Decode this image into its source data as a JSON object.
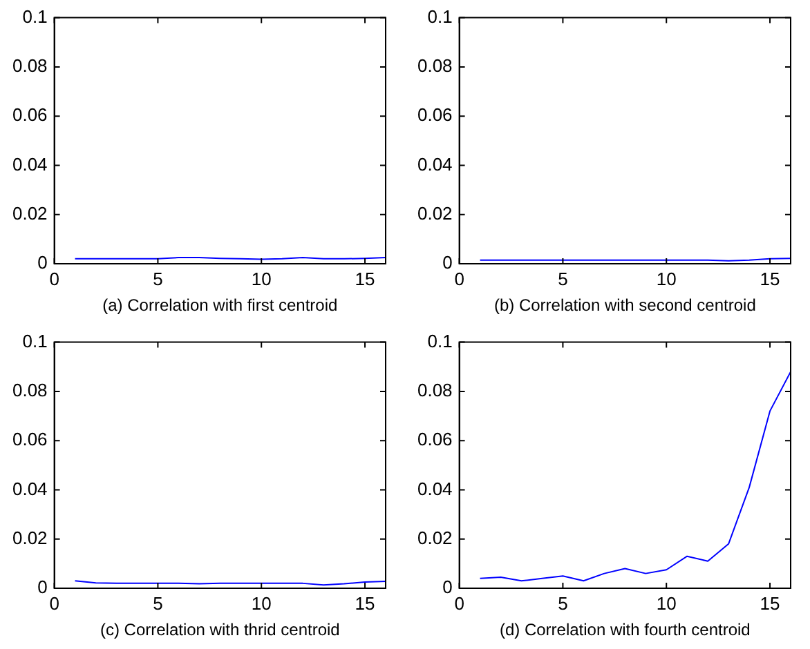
{
  "chart_data": [
    {
      "type": "line",
      "xlabel": "(a) Correlation with first centroid",
      "x": [
        1,
        2,
        3,
        4,
        5,
        6,
        7,
        8,
        9,
        10,
        11,
        12,
        13,
        14,
        15,
        16
      ],
      "series": [
        {
          "color": "#0000ff",
          "values": [
            0.002,
            0.002,
            0.002,
            0.002,
            0.002,
            0.0025,
            0.0025,
            0.0022,
            0.002,
            0.0018,
            0.002,
            0.0025,
            0.002,
            0.002,
            0.0022,
            0.0025
          ]
        }
      ],
      "xlim": [
        0,
        16
      ],
      "ylim": [
        0,
        0.1
      ],
      "xticks": [
        0,
        5,
        10,
        15
      ],
      "yticks": [
        0,
        0.02,
        0.04,
        0.06,
        0.08,
        0.1
      ],
      "grid": false,
      "legend": false,
      "marker": "none",
      "line_style": "solid"
    },
    {
      "type": "line",
      "xlabel": "(b) Correlation with second centroid",
      "x": [
        1,
        2,
        3,
        4,
        5,
        6,
        7,
        8,
        9,
        10,
        11,
        12,
        13,
        14,
        15,
        16
      ],
      "series": [
        {
          "color": "#0000ff",
          "values": [
            0.0015,
            0.0015,
            0.0015,
            0.0015,
            0.0015,
            0.0015,
            0.0015,
            0.0015,
            0.0015,
            0.0015,
            0.0015,
            0.0015,
            0.0012,
            0.0015,
            0.002,
            0.0022
          ]
        }
      ],
      "xlim": [
        0,
        16
      ],
      "ylim": [
        0,
        0.1
      ],
      "xticks": [
        0,
        5,
        10,
        15
      ],
      "yticks": [
        0,
        0.02,
        0.04,
        0.06,
        0.08,
        0.1
      ],
      "grid": false,
      "legend": false,
      "marker": "none",
      "line_style": "solid"
    },
    {
      "type": "line",
      "xlabel": "(c) Correlation with thrid centroid",
      "x": [
        1,
        2,
        3,
        4,
        5,
        6,
        7,
        8,
        9,
        10,
        11,
        12,
        13,
        14,
        15,
        16
      ],
      "series": [
        {
          "color": "#0000ff",
          "values": [
            0.003,
            0.0022,
            0.002,
            0.002,
            0.002,
            0.002,
            0.0018,
            0.002,
            0.002,
            0.002,
            0.002,
            0.002,
            0.0013,
            0.0018,
            0.0025,
            0.0028
          ]
        }
      ],
      "xlim": [
        0,
        16
      ],
      "ylim": [
        0,
        0.1
      ],
      "xticks": [
        0,
        5,
        10,
        15
      ],
      "yticks": [
        0,
        0.02,
        0.04,
        0.06,
        0.08,
        0.1
      ],
      "grid": false,
      "legend": false,
      "marker": "none",
      "line_style": "solid"
    },
    {
      "type": "line",
      "xlabel": "(d) Correlation with fourth centroid",
      "x": [
        1,
        2,
        3,
        4,
        5,
        6,
        7,
        8,
        9,
        10,
        11,
        12,
        13,
        14,
        15,
        16
      ],
      "series": [
        {
          "color": "#0000ff",
          "values": [
            0.004,
            0.0045,
            0.003,
            0.004,
            0.005,
            0.003,
            0.006,
            0.008,
            0.006,
            0.0075,
            0.013,
            0.011,
            0.018,
            0.041,
            0.072,
            0.088
          ]
        }
      ],
      "xlim": [
        0,
        16
      ],
      "ylim": [
        0,
        0.1
      ],
      "xticks": [
        0,
        5,
        10,
        15
      ],
      "yticks": [
        0,
        0.02,
        0.04,
        0.06,
        0.08,
        0.1
      ],
      "grid": false,
      "legend": false,
      "marker": "none",
      "line_style": "solid"
    }
  ]
}
